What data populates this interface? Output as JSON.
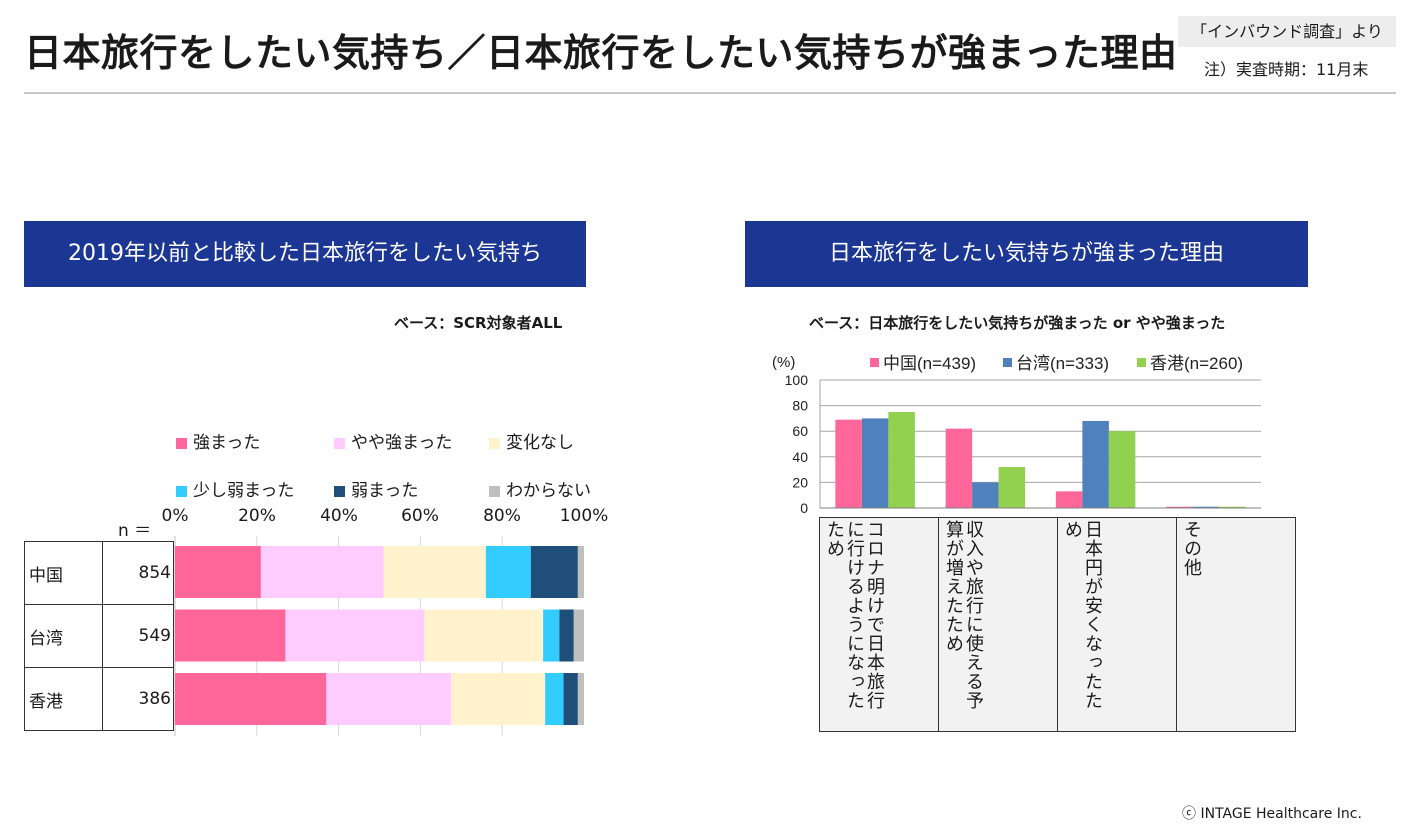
{
  "page": {
    "title": "日本旅行をしたい気持ち／日本旅行をしたい気持ちが強まった理由",
    "source": "「インバウンド調査」より",
    "note": "注）実査時期：11月末",
    "copyright": "ⓒ INTAGE Healthcare Inc."
  },
  "left_panel": {
    "header": "2019年以前と比較した日本旅行をしたい気持ち",
    "base": "ベース：SCR対象者ALL",
    "n_label": "n ＝"
  },
  "right_panel": {
    "header": "日本旅行をしたい気持ちが強まった理由",
    "base": "ベース：日本旅行をしたい気持ちが強まった or やや強まった"
  },
  "chart_data": [
    {
      "type": "bar",
      "orientation": "horizontal-stacked-100",
      "categories": [
        "中国",
        "台湾",
        "香港"
      ],
      "n": [
        "854",
        "549",
        "386"
      ],
      "series": [
        {
          "name": "強まった",
          "color": "#ff6699",
          "values": [
            21,
            27,
            37
          ]
        },
        {
          "name": "やや強まった",
          "color": "#ffccff",
          "values": [
            30,
            34,
            30.5
          ]
        },
        {
          "name": "変化なし",
          "color": "#fff2cc",
          "values": [
            25,
            29,
            23
          ]
        },
        {
          "name": "少し弱まった",
          "color": "#33ccff",
          "values": [
            11,
            4,
            4.5
          ]
        },
        {
          "name": "弱まった",
          "color": "#1f4e79",
          "values": [
            11.5,
            3.5,
            3.5
          ]
        },
        {
          "name": "わからない",
          "color": "#bfbfbf",
          "values": [
            1.5,
            2.5,
            1.5
          ]
        }
      ],
      "xticks": [
        "0%",
        "20%",
        "40%",
        "60%",
        "80%",
        "100%"
      ],
      "xlim": [
        0,
        100
      ],
      "legend_position": "top"
    },
    {
      "type": "bar",
      "orientation": "vertical-grouped",
      "ylabel": "(%)",
      "ylim": [
        0,
        100
      ],
      "yticks": [
        "0",
        "20",
        "40",
        "60",
        "80",
        "100"
      ],
      "grid": true,
      "categories": [
        "コロナ明けで日本旅行に行けるようになったため",
        "収入や旅行に使える予算が増えたため",
        "日本円が安くなったため",
        "その他"
      ],
      "series": [
        {
          "name": "中国(n=439)",
          "color": "#ff6699",
          "values": [
            69,
            62,
            13,
            1
          ]
        },
        {
          "name": "台湾(n=333)",
          "color": "#4f81bd",
          "values": [
            70,
            20,
            68,
            1
          ]
        },
        {
          "name": "香港(n=260)",
          "color": "#92d050",
          "values": [
            75,
            32,
            60,
            1
          ]
        }
      ],
      "legend_position": "top"
    }
  ]
}
